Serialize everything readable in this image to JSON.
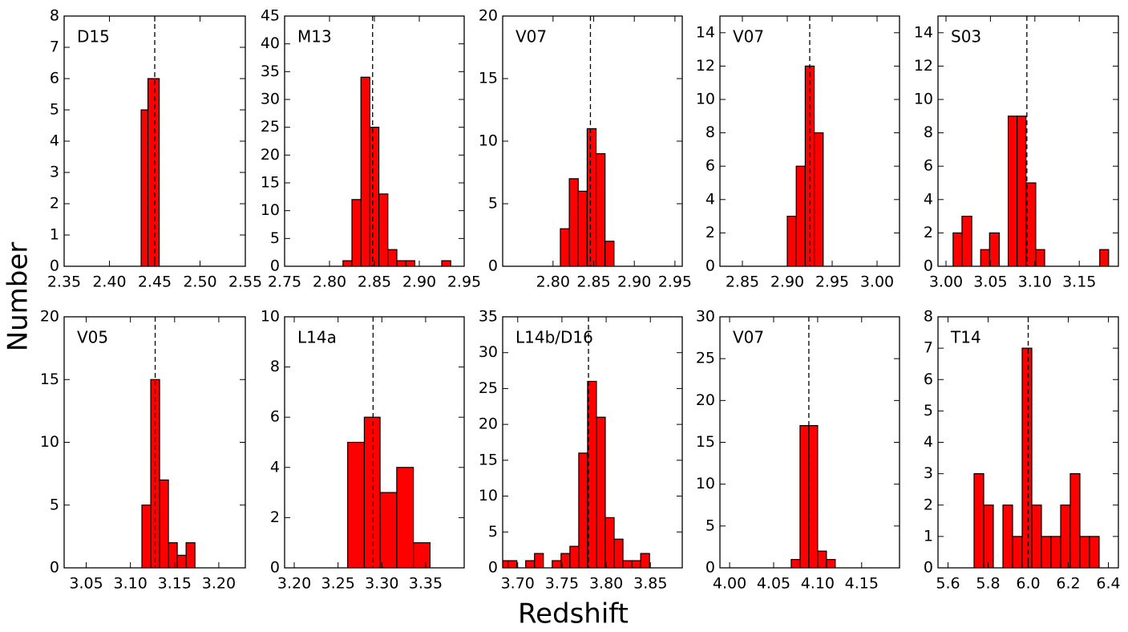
{
  "xlabel": "Redshift",
  "ylabel": "Number",
  "chart_data": [
    {
      "type": "histogram",
      "label": "D15",
      "color": "#ff0000",
      "vline": 2.45,
      "bins": [
        2.435,
        2.4425,
        2.455
      ],
      "counts": [
        5,
        6
      ],
      "xlim": [
        2.35,
        2.55
      ],
      "xticks": [
        2.35,
        {
          "value": 2.4,
          "label": "2.40"
        },
        2.45,
        {
          "value": 2.5,
          "label": "2.50"
        },
        2.55
      ],
      "ylim": [
        0,
        8
      ],
      "yticks": [
        0,
        1,
        2,
        3,
        4,
        5,
        6,
        7,
        8
      ]
    },
    {
      "type": "histogram",
      "label": "M13",
      "color": "#ff0000",
      "vline": 2.848,
      "bins": [
        2.815,
        2.825,
        2.835,
        2.845,
        2.855,
        2.865,
        2.875,
        2.885,
        2.895,
        2.905,
        2.915,
        2.925,
        2.935
      ],
      "counts": [
        1,
        12,
        34,
        25,
        13,
        3,
        1,
        1,
        0,
        0,
        0,
        1
      ],
      "xlim": [
        2.75,
        2.95
      ],
      "xticks": [
        2.75,
        {
          "value": 2.8,
          "label": "2.80"
        },
        2.85,
        {
          "value": 2.9,
          "label": "2.90"
        },
        2.95
      ],
      "ylim": [
        0,
        45
      ],
      "yticks": [
        0,
        5,
        10,
        15,
        20,
        25,
        30,
        35,
        40,
        45
      ]
    },
    {
      "type": "histogram",
      "label": "V07",
      "color": "#ff0000",
      "vline": 2.846,
      "bins": [
        2.809,
        2.82,
        2.831,
        2.842,
        2.853,
        2.864,
        2.875
      ],
      "counts": [
        3,
        7,
        6,
        11,
        9,
        2
      ],
      "xlim": [
        2.738,
        2.959
      ],
      "xticks": [
        {
          "value": 2.8,
          "label": "2.80"
        },
        2.85,
        {
          "value": 2.9,
          "label": "2.90"
        },
        2.95
      ],
      "ylim": [
        0,
        20
      ],
      "yticks": [
        0,
        5,
        10,
        15,
        20
      ]
    },
    {
      "type": "histogram",
      "label": "V07",
      "color": "#ff0000",
      "vline": 2.925,
      "bins": [
        2.9,
        2.91,
        2.92,
        2.93,
        2.94
      ],
      "counts": [
        3,
        6,
        12,
        8
      ],
      "xlim": [
        2.825,
        3.025
      ],
      "xticks": [
        2.85,
        {
          "value": 2.9,
          "label": "2.90"
        },
        2.95,
        {
          "value": 3.0,
          "label": "3.00"
        }
      ],
      "ylim": [
        0,
        15
      ],
      "yticks": [
        0,
        2,
        4,
        6,
        8,
        10,
        12,
        14
      ]
    },
    {
      "type": "histogram",
      "label": "S03",
      "color": "#ff0000",
      "vline": 3.091,
      "bins": [
        3.008,
        3.018,
        3.029,
        3.039,
        3.049,
        3.06,
        3.07,
        3.08,
        3.09,
        3.101,
        3.111,
        3.121,
        3.132,
        3.142,
        3.152,
        3.163,
        3.173,
        3.183
      ],
      "counts": [
        2,
        3,
        0,
        1,
        2,
        0,
        9,
        9,
        5,
        1,
        0,
        0,
        0,
        0,
        0,
        0,
        1
      ],
      "xlim": [
        2.991,
        3.194
      ],
      "xticks": [
        {
          "value": 3.0,
          "label": "3.00"
        },
        3.05,
        {
          "value": 3.1,
          "label": "3.10"
        },
        3.15
      ],
      "ylim": [
        0,
        15
      ],
      "yticks": [
        0,
        2,
        4,
        6,
        8,
        10,
        12,
        14
      ]
    },
    {
      "type": "histogram",
      "label": "V05",
      "color": "#ff0000",
      "vline": 3.128,
      "bins": [
        3.113,
        3.123,
        3.133,
        3.143,
        3.153,
        3.163,
        3.173
      ],
      "counts": [
        5,
        15,
        7,
        2,
        1,
        2
      ],
      "xlim": [
        3.025,
        3.23
      ],
      "xticks": [
        3.05,
        {
          "value": 3.1,
          "label": "3.10"
        },
        3.15,
        {
          "value": 3.2,
          "label": "3.20"
        }
      ],
      "ylim": [
        0,
        20
      ],
      "yticks": [
        0,
        5,
        10,
        15,
        20
      ]
    },
    {
      "type": "histogram",
      "label": "L14a",
      "color": "#ff0000",
      "vline": 3.29,
      "bins": [
        3.261,
        3.28,
        3.298,
        3.317,
        3.336,
        3.355
      ],
      "counts": [
        5,
        6,
        3,
        4,
        1
      ],
      "xlim": [
        3.189,
        3.394
      ],
      "xticks": [
        {
          "value": 3.2,
          "label": "3.20"
        },
        3.25,
        {
          "value": 3.3,
          "label": "3.30"
        },
        3.35
      ],
      "ylim": [
        0,
        10
      ],
      "yticks": [
        0,
        2,
        4,
        6,
        8,
        10
      ]
    },
    {
      "type": "histogram",
      "label": "L14b/D16",
      "color": "#ff0000",
      "vline": 3.78,
      "bins": [
        3.679,
        3.689,
        3.699,
        3.709,
        3.719,
        3.729,
        3.739,
        3.749,
        3.759,
        3.769,
        3.779,
        3.789,
        3.799,
        3.809,
        3.819,
        3.829,
        3.839,
        3.849
      ],
      "counts": [
        1,
        1,
        0,
        1,
        2,
        0,
        1,
        2,
        3,
        16,
        26,
        21,
        7,
        4,
        1,
        1,
        2
      ],
      "xlim": [
        3.683,
        3.886
      ],
      "xticks": [
        {
          "value": 3.7,
          "label": "3.70"
        },
        3.75,
        {
          "value": 3.8,
          "label": "3.80"
        },
        3.85
      ],
      "ylim": [
        0,
        35
      ],
      "yticks": [
        0,
        5,
        10,
        15,
        20,
        25,
        30,
        35
      ]
    },
    {
      "type": "histogram",
      "label": "V07",
      "color": "#ff0000",
      "vline": 4.09,
      "bins": [
        4.07,
        4.08,
        4.09,
        4.1,
        4.11,
        4.12
      ],
      "counts": [
        1,
        17,
        17,
        2,
        1
      ],
      "xlim": [
        3.989,
        4.193
      ],
      "xticks": [
        {
          "value": 4.0,
          "label": "4.00"
        },
        4.05,
        {
          "value": 4.1,
          "label": "4.10"
        },
        4.15
      ],
      "ylim": [
        0,
        30
      ],
      "yticks": [
        0,
        5,
        10,
        15,
        20,
        25,
        30
      ]
    },
    {
      "type": "histogram",
      "label": "T14",
      "color": "#ff0000",
      "vline": 6.0,
      "bins": [
        5.73,
        5.778,
        5.826,
        5.874,
        5.922,
        5.97,
        6.018,
        6.066,
        6.114,
        6.162,
        6.21,
        6.258,
        6.306,
        6.354
      ],
      "counts": [
        3,
        2,
        0,
        2,
        1,
        7,
        2,
        1,
        1,
        2,
        3,
        1,
        1
      ],
      "xlim": [
        5.55,
        6.45
      ],
      "xticks": [
        5.6,
        5.8,
        {
          "value": 6.0,
          "label": "6.0"
        },
        6.2,
        6.4
      ],
      "ylim": [
        0,
        8
      ],
      "yticks": [
        0,
        1,
        2,
        3,
        4,
        5,
        6,
        7,
        8
      ]
    }
  ]
}
